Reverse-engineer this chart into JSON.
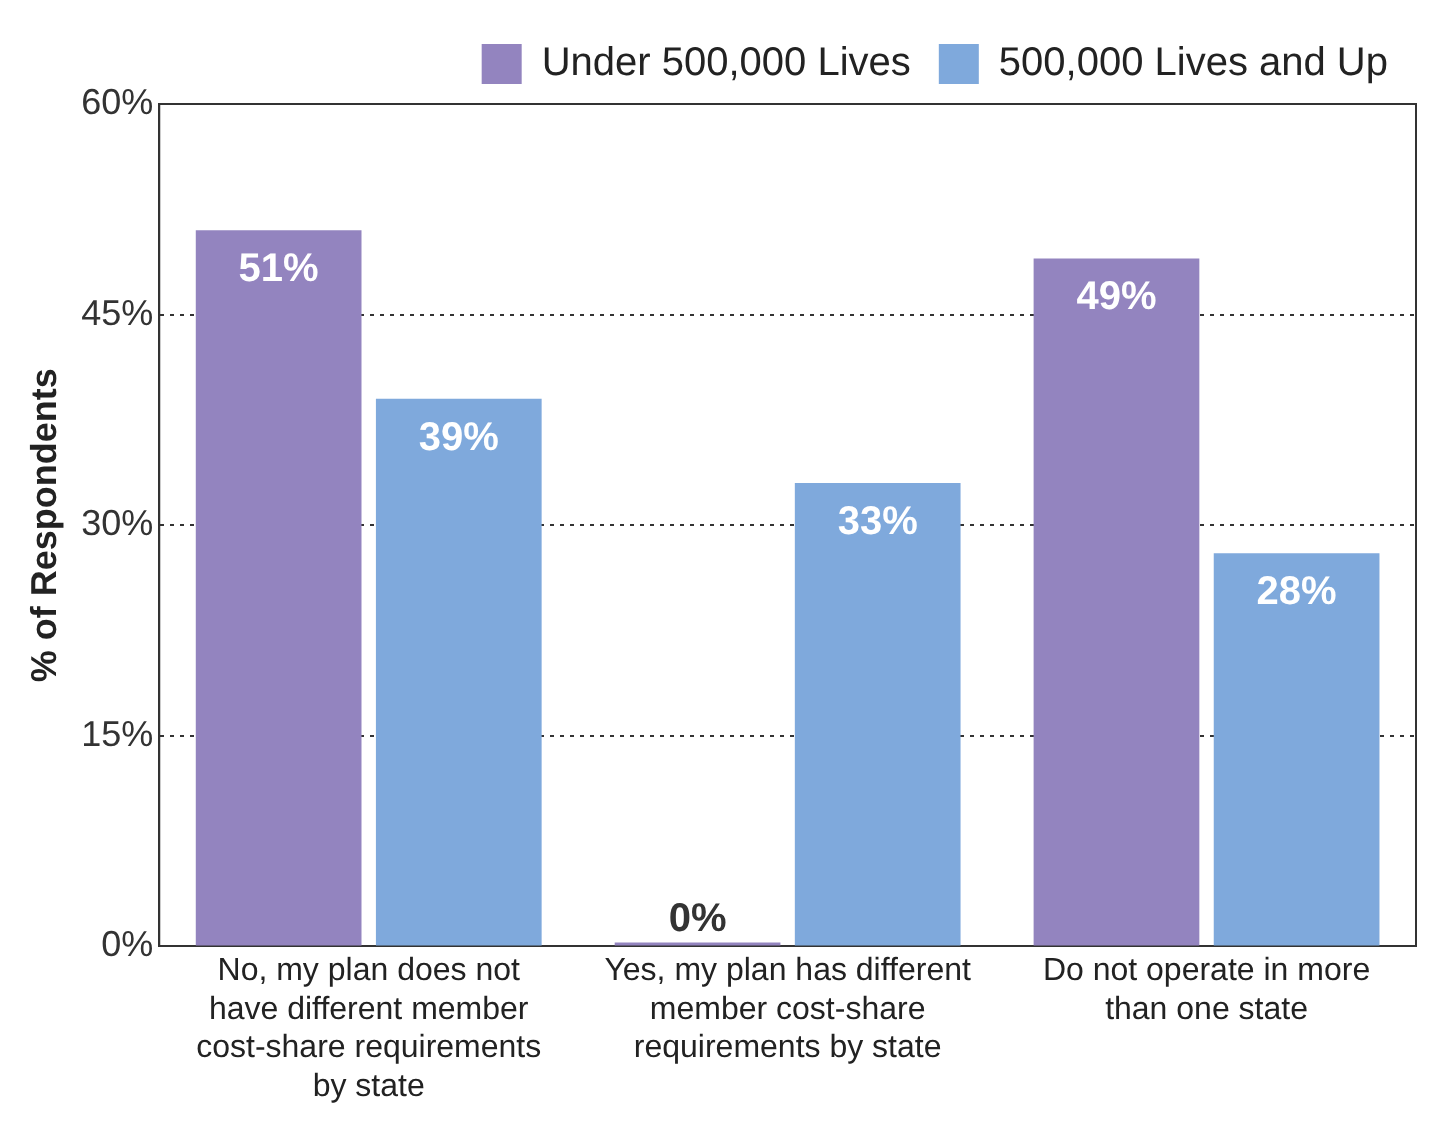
{
  "chart_data": {
    "type": "bar",
    "ylabel": "% of Respondents",
    "categories": [
      "No, my plan does not have different member cost-share requirements by state",
      "Yes, my plan has different member cost-share requirements by state",
      "Do not operate in more than one state"
    ],
    "series": [
      {
        "name": "Under 500,000 Lives",
        "color": "#9384bf",
        "values": [
          51,
          0,
          49
        ],
        "value_labels": [
          "51%",
          "0%",
          "49%"
        ]
      },
      {
        "name": "500,000 Lives and Up",
        "color": "#7fa9dc",
        "values": [
          39,
          33,
          28
        ],
        "value_labels": [
          "39%",
          "33%",
          "28%"
        ]
      }
    ],
    "ylim": [
      0,
      60
    ],
    "yticks": [
      {
        "value": 0,
        "label": "0%"
      },
      {
        "value": 15,
        "label": "15%"
      },
      {
        "value": 30,
        "label": "30%"
      },
      {
        "value": 45,
        "label": "45%"
      },
      {
        "value": 60,
        "label": "60%"
      }
    ],
    "grid": "y",
    "legend": "top right"
  }
}
